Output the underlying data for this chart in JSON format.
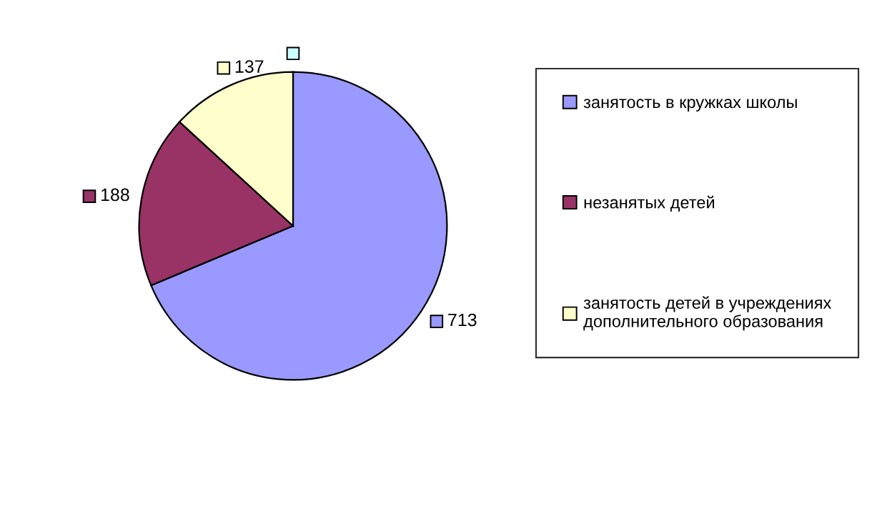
{
  "chart_data": {
    "type": "pie",
    "categories": [
      "занятость в кружках школы",
      "незанятых детей",
      "занятость детей в учреждениях\nдополнительного образования",
      null
    ],
    "values": [
      713,
      188,
      137,
      0
    ],
    "value_labels": [
      "713",
      "188",
      "137",
      null
    ],
    "colors": [
      "#9999ff",
      "#993366",
      "#ffffcc",
      "#ccffff"
    ],
    "legend": "right"
  }
}
